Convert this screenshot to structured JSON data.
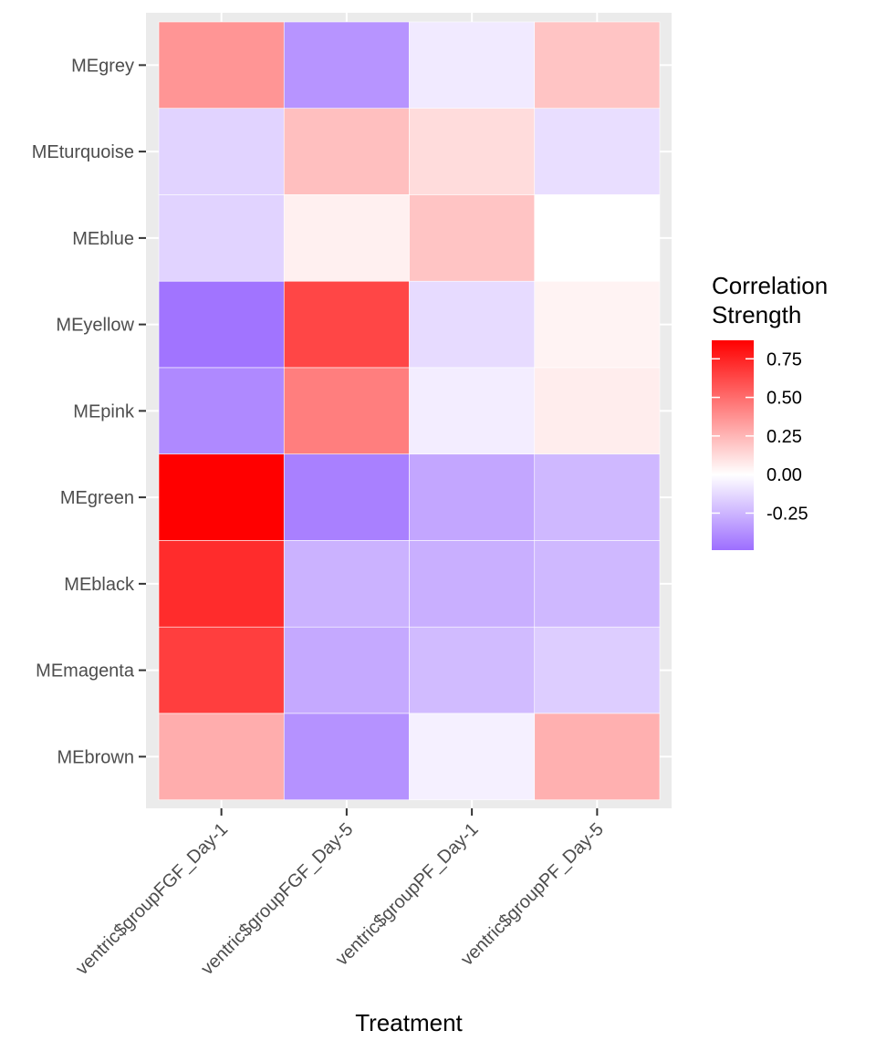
{
  "chart_data": {
    "type": "heatmap",
    "title": "",
    "xlabel": "Treatment",
    "ylabel": "",
    "x": [
      "ventric$groupFGF_Day-1",
      "ventric$groupFGF_Day-5",
      "ventric$groupPF_Day-1",
      "ventric$groupPF_Day-5"
    ],
    "y": [
      "MEgrey",
      "MEturquoise",
      "MEblue",
      "MEyellow",
      "MEpink",
      "MEgreen",
      "MEblack",
      "MEmagenta",
      "MEbrown"
    ],
    "values": [
      [
        0.36,
        -0.36,
        -0.07,
        0.2
      ],
      [
        -0.15,
        0.22,
        0.12,
        -0.11
      ],
      [
        -0.15,
        0.05,
        0.2,
        0.0
      ],
      [
        -0.47,
        0.63,
        -0.12,
        0.04
      ],
      [
        -0.4,
        0.44,
        -0.06,
        0.06
      ],
      [
        0.87,
        -0.43,
        -0.3,
        -0.24
      ],
      [
        0.72,
        -0.26,
        -0.27,
        -0.24
      ],
      [
        0.66,
        -0.29,
        -0.23,
        -0.17
      ],
      [
        0.28,
        -0.37,
        -0.05,
        0.27
      ]
    ],
    "legend": {
      "title_lines": [
        "Correlation",
        "Strength"
      ],
      "breaks": [
        0.75,
        0.5,
        0.25,
        0.0,
        -0.25
      ],
      "break_labels": [
        "0.75",
        "0.50",
        "0.25",
        "0.00",
        "-0.25"
      ],
      "range": [
        -0.49,
        0.87
      ],
      "position": "right"
    },
    "colors": {
      "low": "#9d6eff",
      "mid": "#ffffff",
      "high": "#ff0000",
      "panel": "#ebebeb",
      "grid": "#ffffff"
    },
    "grid": true
  }
}
